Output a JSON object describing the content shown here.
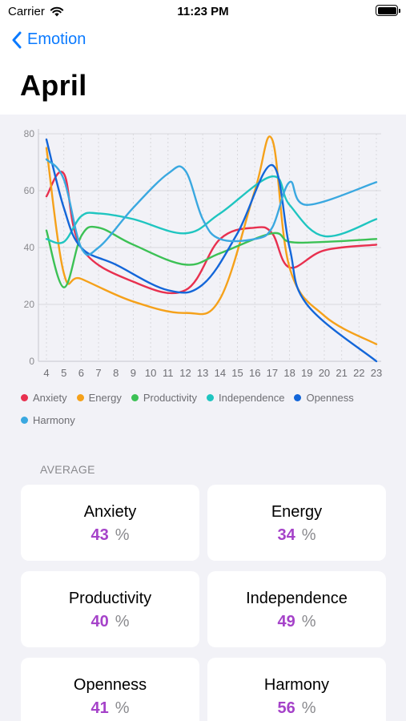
{
  "status_bar": {
    "carrier": "Carrier",
    "time": "11:23 PM"
  },
  "nav": {
    "back_label": "Emotion"
  },
  "page": {
    "title": "April"
  },
  "chart_data": {
    "type": "line",
    "x": [
      4,
      5,
      6,
      7,
      8,
      9,
      10,
      11,
      12,
      13,
      14,
      15,
      16,
      17,
      18,
      19,
      20,
      21,
      22,
      23
    ],
    "x_tick_labels": [
      "4",
      "5",
      "6",
      "7",
      "8",
      "9",
      "10",
      "11",
      "12",
      "13",
      "14",
      "15",
      "16",
      "17",
      "18",
      "19",
      "20",
      "21",
      "22",
      "23"
    ],
    "y_tick_labels": [
      "0",
      "20",
      "40",
      "60",
      "80"
    ],
    "ylim": [
      0,
      80
    ],
    "grid": true,
    "legend_position": "bottom",
    "series": [
      {
        "name": "Anxiety",
        "color": "#e8304f",
        "points": [
          [
            4,
            58
          ],
          [
            5,
            66
          ],
          [
            6,
            40
          ],
          [
            9,
            28
          ],
          [
            12,
            25
          ],
          [
            14,
            43
          ],
          [
            16,
            47
          ],
          [
            17,
            45
          ],
          [
            18,
            33
          ],
          [
            20,
            39
          ],
          [
            23,
            41
          ]
        ]
      },
      {
        "name": "Energy",
        "color": "#f5a11a",
        "points": [
          [
            4,
            75
          ],
          [
            5,
            31
          ],
          [
            6,
            29
          ],
          [
            9,
            21
          ],
          [
            12,
            17
          ],
          [
            14,
            22
          ],
          [
            16,
            60
          ],
          [
            17,
            78
          ],
          [
            18,
            33
          ],
          [
            20,
            16
          ],
          [
            23,
            6
          ]
        ]
      },
      {
        "name": "Productivity",
        "color": "#3cc155",
        "points": [
          [
            4,
            46
          ],
          [
            5,
            26
          ],
          [
            6,
            44
          ],
          [
            7,
            47
          ],
          [
            9,
            41
          ],
          [
            12,
            34
          ],
          [
            14,
            38
          ],
          [
            17,
            45
          ],
          [
            18,
            42
          ],
          [
            20,
            42
          ],
          [
            23,
            43
          ]
        ]
      },
      {
        "name": "Independence",
        "color": "#1fc5c0",
        "points": [
          [
            4,
            43
          ],
          [
            5,
            42
          ],
          [
            6,
            51
          ],
          [
            7,
            52
          ],
          [
            9,
            50
          ],
          [
            12,
            45
          ],
          [
            14,
            52
          ],
          [
            17,
            65
          ],
          [
            18,
            55
          ],
          [
            20,
            44
          ],
          [
            23,
            50
          ]
        ]
      },
      {
        "name": "Openness",
        "color": "#1366d9",
        "points": [
          [
            4,
            78
          ],
          [
            5,
            54
          ],
          [
            6,
            40
          ],
          [
            8,
            34
          ],
          [
            11,
            25
          ],
          [
            13,
            27
          ],
          [
            15,
            45
          ],
          [
            17,
            69
          ],
          [
            18,
            40
          ],
          [
            19,
            20
          ],
          [
            23,
            0
          ]
        ]
      },
      {
        "name": "Harmony",
        "color": "#3aa8e0",
        "points": [
          [
            4,
            71
          ],
          [
            5,
            64
          ],
          [
            6,
            40
          ],
          [
            7,
            40
          ],
          [
            9,
            54
          ],
          [
            11,
            66
          ],
          [
            12,
            67
          ],
          [
            13,
            50
          ],
          [
            14,
            43
          ],
          [
            16,
            43
          ],
          [
            17,
            47
          ],
          [
            18,
            63
          ],
          [
            19,
            55
          ],
          [
            23,
            63
          ]
        ]
      }
    ]
  },
  "average": {
    "label": "AVERAGE",
    "percent_sign": "%",
    "cards": [
      {
        "title": "Anxiety",
        "value": "43"
      },
      {
        "title": "Energy",
        "value": "34"
      },
      {
        "title": "Productivity",
        "value": "40"
      },
      {
        "title": "Independence",
        "value": "49"
      },
      {
        "title": "Openness",
        "value": "41"
      },
      {
        "title": "Harmony",
        "value": "56"
      }
    ]
  }
}
